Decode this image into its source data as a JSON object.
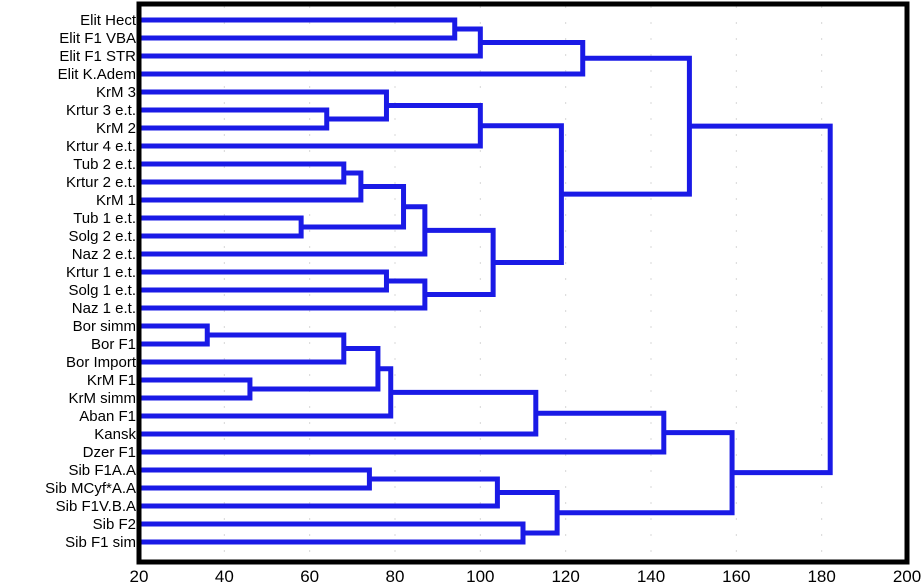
{
  "chart_data": {
    "type": "dendrogram",
    "orientation": "horizontal",
    "xlim": [
      20,
      200
    ],
    "xticks": [
      "20",
      "40",
      "60",
      "80",
      "100",
      "120",
      "140",
      "160",
      "180",
      "200"
    ],
    "line_color": "#1a1ae6",
    "leaves": [
      "Elit Hect",
      "Elit F1 VBA",
      "Elit F1 STR",
      "Elit K.Adem",
      "KrM 3",
      "Krtur 3 e.t.",
      "KrM 2",
      "Krtur 4 e.t.",
      "Tub 2 e.t.",
      "Krtur 2 e.t.",
      "KrM 1",
      "Tub 1 e.t.",
      "Solg 2 e.t.",
      "Naz 2 e.t.",
      "Krtur 1 e.t.",
      "Solg 1 e.t.",
      "Naz 1 e.t.",
      "Bor simm",
      "Bor F1",
      "Bor Import",
      "KrM F1",
      "KrM simm",
      "Aban F1",
      "Kansk",
      "Dzer F1",
      "Sib F1A.A",
      "Sib MCyf*A.A",
      "Sib F1V.B.A",
      "Sib F2",
      "Sib F1 sim"
    ],
    "merges": [
      {
        "a": "L0",
        "b": "L1",
        "height": 94
      },
      {
        "a": "N0",
        "b": "L2",
        "height": 100
      },
      {
        "a": "N1",
        "b": "L3",
        "height": 124
      },
      {
        "a": "L5",
        "b": "L6",
        "height": 64
      },
      {
        "a": "L4",
        "b": "N3",
        "height": 78
      },
      {
        "a": "N4",
        "b": "L7",
        "height": 100
      },
      {
        "a": "L8",
        "b": "L9",
        "height": 68
      },
      {
        "a": "N6",
        "b": "L10",
        "height": 72
      },
      {
        "a": "L11",
        "b": "L12",
        "height": 58
      },
      {
        "a": "N7",
        "b": "N8",
        "height": 82
      },
      {
        "a": "N9",
        "b": "L13",
        "height": 87
      },
      {
        "a": "L14",
        "b": "L15",
        "height": 78
      },
      {
        "a": "N11",
        "b": "L16",
        "height": 87
      },
      {
        "a": "N10",
        "b": "N12",
        "height": 103
      },
      {
        "a": "N5",
        "b": "N13",
        "height": 119
      },
      {
        "a": "N2",
        "b": "N14",
        "height": 149
      },
      {
        "a": "L17",
        "b": "L18",
        "height": 36
      },
      {
        "a": "N16",
        "b": "L19",
        "height": 68
      },
      {
        "a": "L20",
        "b": "L21",
        "height": 46
      },
      {
        "a": "N17",
        "b": "N18",
        "height": 76
      },
      {
        "a": "N19",
        "b": "L22",
        "height": 79
      },
      {
        "a": "N20",
        "b": "L23",
        "height": 113
      },
      {
        "a": "N21",
        "b": "L24",
        "height": 143
      },
      {
        "a": "L25",
        "b": "L26",
        "height": 74
      },
      {
        "a": "N23",
        "b": "L27",
        "height": 104
      },
      {
        "a": "L28",
        "b": "L29",
        "height": 110
      },
      {
        "a": "N24",
        "b": "N25",
        "height": 118
      },
      {
        "a": "N22",
        "b": "N26",
        "height": 159
      },
      {
        "a": "N15",
        "b": "N27",
        "height": 182
      }
    ]
  }
}
